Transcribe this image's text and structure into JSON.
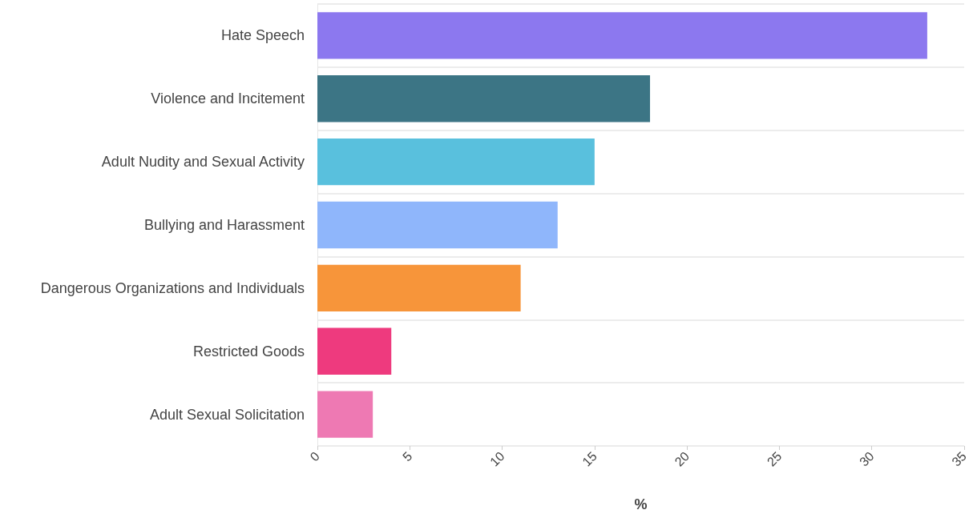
{
  "chart_data": {
    "type": "bar",
    "orientation": "horizontal",
    "xlabel": "%",
    "categories": [
      "Hate Speech",
      "Violence and Incitement",
      "Adult Nudity and Sexual Activity",
      "Bullying and Harassment",
      "Dangerous Organizations and Individuals",
      "Restricted Goods",
      "Adult Sexual Solicitation"
    ],
    "values": [
      33,
      18,
      15,
      13,
      11,
      4,
      3
    ],
    "colors": [
      "#8c78ef",
      "#3c7585",
      "#59c0dd",
      "#8fb6fb",
      "#f7953a",
      "#ee3a7e",
      "#ee79b3"
    ],
    "xlim": [
      0,
      35
    ],
    "xticks": [
      0,
      5,
      10,
      15,
      20,
      25,
      30,
      35
    ],
    "grid": "y"
  }
}
